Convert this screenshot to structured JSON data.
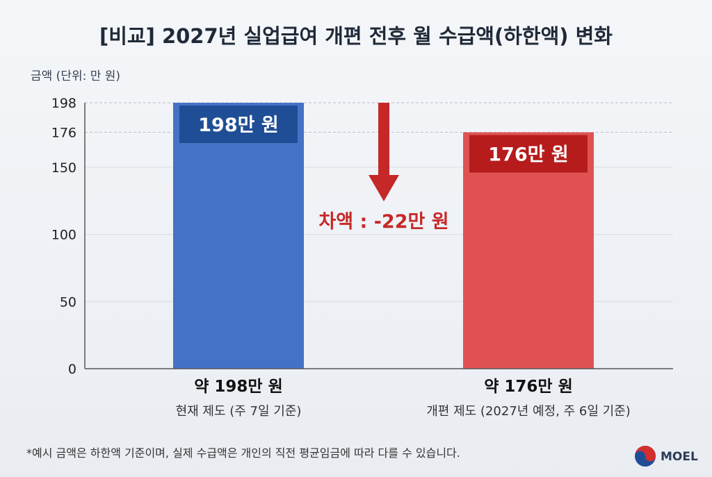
{
  "chart_data": {
    "type": "bar",
    "title": "[비교] 2027년 실업급여 개편 전후 월 수급액(하한액) 변화",
    "unit_label": "금액 (단위: 만 원)",
    "ylim": [
      0,
      198
    ],
    "y_ticks": [
      0,
      50,
      100,
      150,
      176,
      198
    ],
    "grid": true,
    "categories": [
      "현재 제도",
      "개편 제도"
    ],
    "values": [
      198,
      176
    ],
    "bar_labels": [
      "198만 원",
      "176만 원"
    ],
    "category_main_labels": [
      "약 198만 원",
      "약 176만 원"
    ],
    "category_sub_labels": [
      "현재 제도 (주 7일 기준)",
      "개편 제도 (2027년 예정, 주 6일 기준)"
    ],
    "bar_colors": [
      "#4472c4",
      "#e05252"
    ],
    "bar_label_bg_colors": [
      "#1f4e96",
      "#b71c1c"
    ],
    "difference_label": "차액 : -22만 원",
    "difference_color": "#c62828"
  },
  "footnote": "*예시 금액은 하한액 기준이며, 실제 수급액은 개인의 직전 평균임금에 따라 다를 수 있습니다.",
  "logo_text": "MOEL"
}
